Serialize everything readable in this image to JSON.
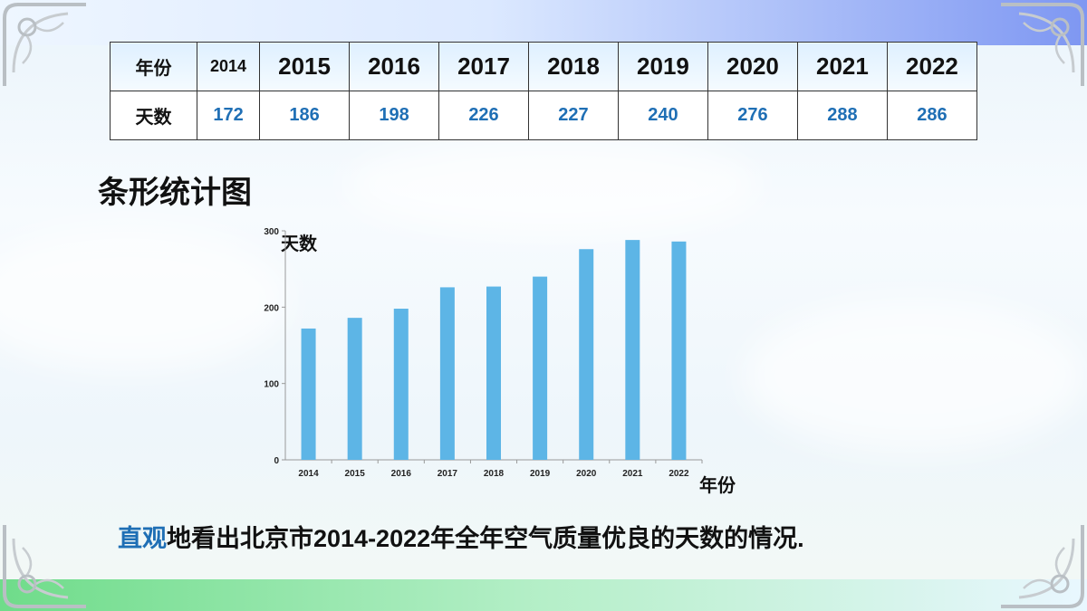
{
  "table": {
    "row1_header": "年份",
    "row2_header": "天数",
    "years": [
      "2014",
      "2015",
      "2016",
      "2017",
      "2018",
      "2019",
      "2020",
      "2021",
      "2022"
    ],
    "days": [
      "172",
      "186",
      "198",
      "226",
      "227",
      "240",
      "276",
      "288",
      "286"
    ]
  },
  "slide_title": "条形统计图",
  "caption": {
    "emphasis": "直观",
    "rest": "地看出北京市2014-2022年全年空气质量优良的天数的情况."
  },
  "chart_data": {
    "type": "bar",
    "categories": [
      "2014",
      "2015",
      "2016",
      "2017",
      "2018",
      "2019",
      "2020",
      "2021",
      "2022"
    ],
    "values": [
      172,
      186,
      198,
      226,
      227,
      240,
      276,
      288,
      286
    ],
    "ylabel": "天数",
    "xlabel": "年份",
    "ylim": [
      0,
      300
    ],
    "yticks": [
      0,
      100,
      200,
      300
    ],
    "bar_color": "#5db5e6",
    "grid": false
  },
  "colors": {
    "accent": "#1f6fb5",
    "bar": "#5db5e6"
  }
}
